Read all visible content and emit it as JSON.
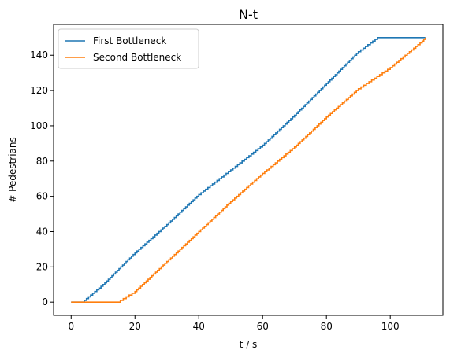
{
  "chart_data": {
    "type": "line",
    "title": "N-t",
    "xlabel": "t / s",
    "ylabel": "# Pedestrians",
    "xlim": [
      -5.5,
      116.5
    ],
    "ylim": [
      -7.5,
      157.5
    ],
    "xticks": [
      0,
      20,
      40,
      60,
      80,
      100
    ],
    "yticks": [
      0,
      20,
      40,
      60,
      80,
      100,
      120,
      140
    ],
    "grid": false,
    "legend_position": "upper-left",
    "line_style": "steps",
    "series": [
      {
        "name": "First Bottleneck",
        "color": "#1f77b4",
        "x": [
          0,
          3.5,
          10,
          20,
          30,
          40,
          50,
          60,
          70,
          80,
          90,
          96,
          111
        ],
        "y": [
          0,
          0,
          10,
          28,
          44,
          61,
          75,
          89,
          106,
          124,
          142,
          150,
          150
        ]
      },
      {
        "name": "Second Bottleneck",
        "color": "#ff7f0e",
        "x": [
          0,
          14.5,
          20,
          30,
          40,
          50,
          60,
          70,
          80,
          90,
          100,
          110,
          111
        ],
        "y": [
          0,
          0,
          6,
          23,
          40,
          57,
          73,
          88,
          105,
          121,
          133,
          148,
          150
        ]
      }
    ]
  }
}
